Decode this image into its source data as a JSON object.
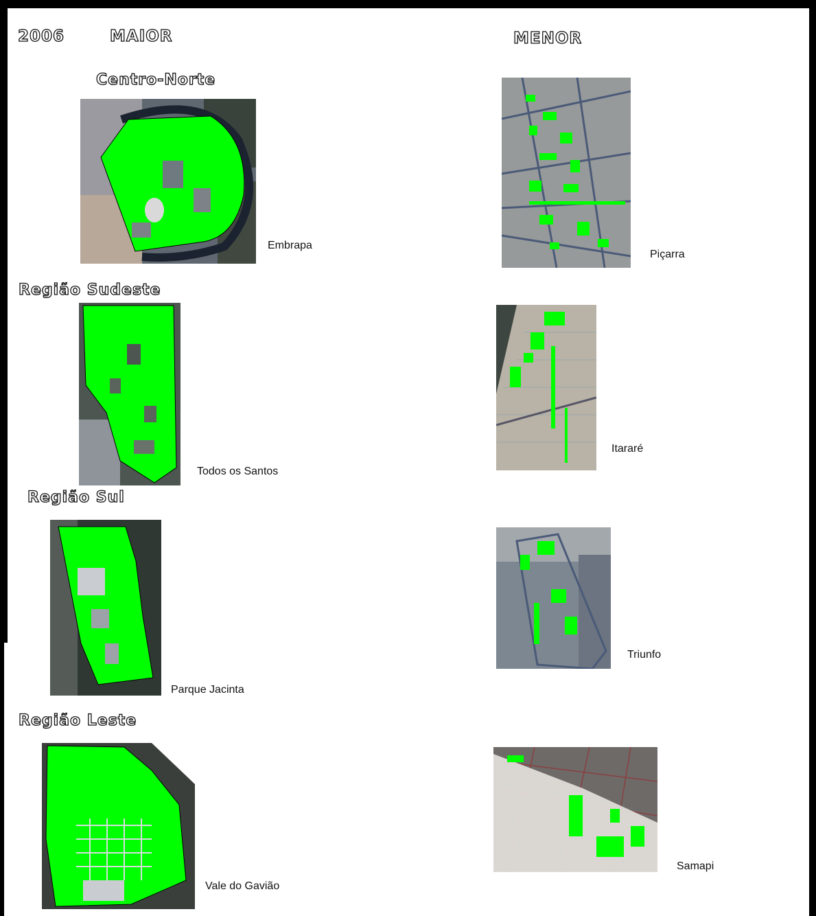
{
  "year": "2006",
  "columns": {
    "left": "MAIOR",
    "right": "MENOR"
  },
  "regions": [
    {
      "heading": "Centro-Norte",
      "maior": "Embrapa",
      "menor": "Piçarra"
    },
    {
      "heading": "Região Sudeste",
      "maior": "Todos os Santos",
      "menor": "Itararé"
    },
    {
      "heading": "Região Sul",
      "maior": "Parque Jacinta",
      "menor": "Triunfo"
    },
    {
      "heading": "Região Leste",
      "maior": "Vale do Gavião",
      "menor": "Samapi"
    }
  ],
  "colors": {
    "vegetation": "#00ff00",
    "border": "#000000",
    "urban": "#8a8f98",
    "dark": "#2f3b33"
  }
}
